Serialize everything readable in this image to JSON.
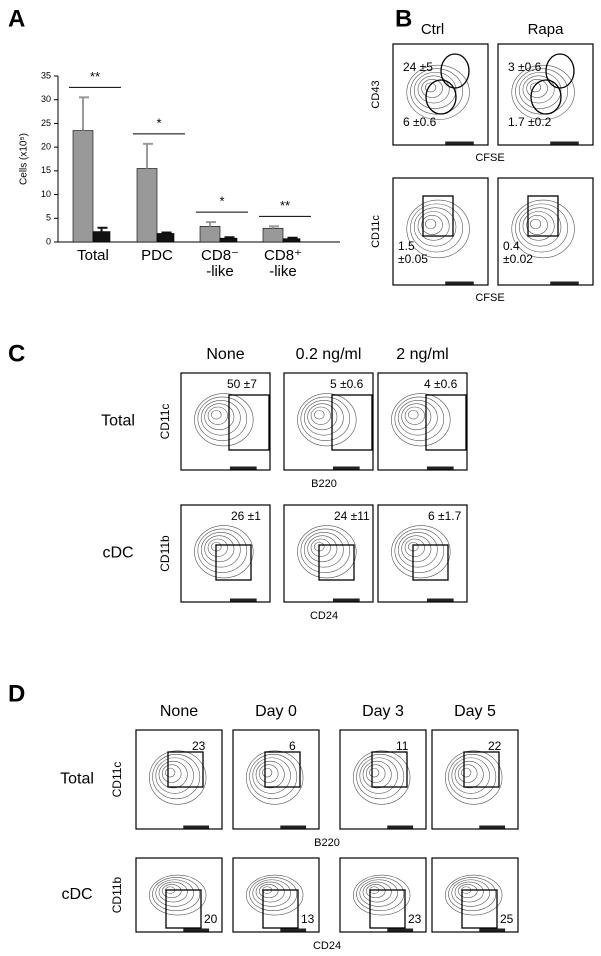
{
  "chart_data": {
    "type": "bar",
    "ylabel": "Cells (x10⁵)",
    "categories": [
      "Total",
      "PDC",
      "CD8⁻\n-like",
      "CD8⁺\n-like"
    ],
    "series": [
      {
        "color": "#999999",
        "values": [
          23.5,
          15.5,
          3.3,
          2.9
        ],
        "errors": [
          7,
          5.2,
          0.9,
          0.4
        ]
      },
      {
        "color": "#111111",
        "values": [
          2.2,
          1.8,
          0.8,
          0.7
        ],
        "errors": [
          0.8,
          0.2,
          0.2,
          0.2
        ]
      }
    ],
    "ylim": [
      0,
      35
    ],
    "yticks": [
      0,
      5,
      10,
      15,
      20,
      25,
      30,
      35
    ],
    "annotations": [
      "**",
      "*",
      "*",
      "**"
    ]
  },
  "panel_labels": [
    "A",
    "B",
    "C",
    "D"
  ],
  "panel_b": {
    "columns": [
      "Ctrl",
      "Rapa"
    ],
    "rows": [
      {
        "ylabel": "CD43",
        "xlabel": "CFSE",
        "gates": [
          [
            "24 ±5",
            "6 ±0.6"
          ],
          [
            "3 ±0.6",
            "1.7 ±0.2"
          ]
        ]
      },
      {
        "ylabel": "CD11c",
        "xlabel": "CFSE",
        "gates": [
          [
            "1.5\n±0.05"
          ],
          [
            "0.4\n±0.02"
          ]
        ]
      }
    ]
  },
  "panel_c": {
    "columns": [
      "None",
      "0.2 ng/ml",
      "2 ng/ml"
    ],
    "rows": [
      {
        "label": "Total",
        "ylabel": "CD11c",
        "xlabel": "B220",
        "gates": [
          "50 ±7",
          "5 ±0.6",
          "4 ±0.6"
        ]
      },
      {
        "label": "cDC",
        "ylabel": "CD11b",
        "xlabel": "CD24",
        "gates": [
          "26 ±1",
          "24 ±11",
          "6 ±1.7"
        ]
      }
    ]
  },
  "panel_d": {
    "columns": [
      "None",
      "Day 0",
      "Day 3",
      "Day 5"
    ],
    "rows": [
      {
        "label": "Total",
        "ylabel": "CD11c",
        "xlabel": "B220",
        "gates": [
          "23",
          "6",
          "11",
          "22"
        ]
      },
      {
        "label": "cDC",
        "ylabel": "CD11b",
        "xlabel": "CD24",
        "gates": [
          "20",
          "13",
          "23",
          "25"
        ]
      }
    ]
  }
}
